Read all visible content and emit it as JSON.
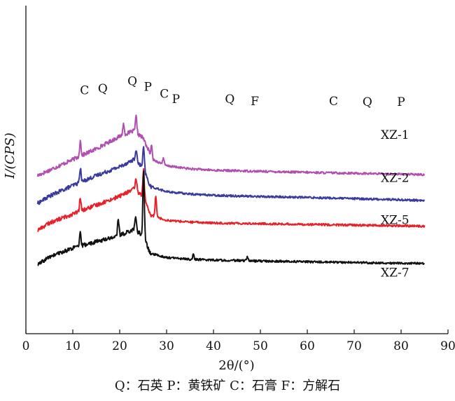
{
  "chart_data": {
    "type": "line",
    "xlabel": "2θ/(°)",
    "ylabel": "I/(CPS)",
    "xlim": [
      0,
      90
    ],
    "x_ticks": [
      0,
      10,
      20,
      30,
      40,
      50,
      60,
      70,
      80,
      90
    ],
    "y_ticks": [],
    "grid": false,
    "legend": "none",
    "series": [
      {
        "name": "XZ-1",
        "color": "#b04fb0",
        "offset": 5.0,
        "background": [
          [
            2.5,
            0.0
          ],
          [
            5,
            0.3
          ],
          [
            10,
            0.9
          ],
          [
            15,
            1.5
          ],
          [
            20,
            2.2
          ],
          [
            23,
            2.5
          ],
          [
            25,
            2.1
          ],
          [
            27,
            0.9
          ],
          [
            30,
            0.55
          ],
          [
            35,
            0.38
          ],
          [
            40,
            0.3
          ],
          [
            50,
            0.24
          ],
          [
            60,
            0.18
          ],
          [
            70,
            0.13
          ],
          [
            80,
            0.08
          ],
          [
            85,
            0.05
          ]
        ],
        "peaks": [
          [
            11.6,
            0.85
          ],
          [
            20.8,
            0.6
          ],
          [
            23.5,
            0.9
          ],
          [
            26.8,
            0.6
          ],
          [
            29.3,
            0.35
          ]
        ]
      },
      {
        "name": "XZ-2",
        "color": "#3a3a9c",
        "offset": 3.45,
        "background": [
          [
            2.5,
            0.0
          ],
          [
            5,
            0.4
          ],
          [
            10,
            1.0
          ],
          [
            15,
            1.55
          ],
          [
            20,
            2.05
          ],
          [
            23,
            2.45
          ],
          [
            25,
            2.0
          ],
          [
            26.5,
            0.95
          ],
          [
            30,
            0.65
          ],
          [
            35,
            0.52
          ],
          [
            40,
            0.45
          ],
          [
            50,
            0.38
          ],
          [
            60,
            0.33
          ],
          [
            70,
            0.26
          ],
          [
            80,
            0.2
          ],
          [
            85,
            0.15
          ]
        ],
        "peaks": [
          [
            11.6,
            0.8
          ],
          [
            23.5,
            0.7
          ],
          [
            25.1,
            1.2
          ]
        ]
      },
      {
        "name": "XZ-5",
        "color": "#e8202a",
        "offset": 1.95,
        "background": [
          [
            2.5,
            0.0
          ],
          [
            5,
            0.4
          ],
          [
            10,
            0.9
          ],
          [
            15,
            1.4
          ],
          [
            20,
            1.9
          ],
          [
            23,
            2.3
          ],
          [
            25,
            1.9
          ],
          [
            26.5,
            0.85
          ],
          [
            30,
            0.55
          ],
          [
            35,
            0.45
          ],
          [
            40,
            0.4
          ],
          [
            50,
            0.36
          ],
          [
            60,
            0.32
          ],
          [
            70,
            0.28
          ],
          [
            80,
            0.24
          ],
          [
            85,
            0.22
          ]
        ],
        "peaks": [
          [
            11.6,
            0.7
          ],
          [
            23.5,
            0.7
          ],
          [
            25.1,
            1.6
          ],
          [
            27.7,
            1.2
          ]
        ]
      },
      {
        "name": "XZ-7",
        "color": "#111111",
        "offset": 0.0,
        "background": [
          [
            2.5,
            0.0
          ],
          [
            5,
            0.45
          ],
          [
            10,
            0.95
          ],
          [
            15,
            1.3
          ],
          [
            20,
            1.65
          ],
          [
            23,
            2.0
          ],
          [
            25,
            1.65
          ],
          [
            26.5,
            0.65
          ],
          [
            30,
            0.42
          ],
          [
            35,
            0.32
          ],
          [
            40,
            0.28
          ],
          [
            50,
            0.22
          ],
          [
            60,
            0.18
          ],
          [
            70,
            0.14
          ],
          [
            80,
            0.1
          ],
          [
            85,
            0.08
          ]
        ],
        "peaks": [
          [
            11.6,
            0.7
          ],
          [
            19.7,
            0.95
          ],
          [
            23.4,
            0.8
          ],
          [
            25.1,
            3.7
          ],
          [
            35.7,
            0.25
          ],
          [
            47.2,
            0.25
          ]
        ]
      }
    ],
    "peak_labels": [
      {
        "text": "C",
        "x": 12.5,
        "y": 9.55
      },
      {
        "text": "Q",
        "x": 16.4,
        "y": 9.65
      },
      {
        "text": "Q",
        "x": 22.7,
        "y": 10.05
      },
      {
        "text": "P",
        "x": 26.0,
        "y": 9.75
      },
      {
        "text": "C",
        "x": 29.5,
        "y": 9.35
      },
      {
        "text": "P",
        "x": 32.0,
        "y": 9.05
      },
      {
        "text": "Q",
        "x": 43.5,
        "y": 9.05
      },
      {
        "text": "F",
        "x": 48.8,
        "y": 8.95
      },
      {
        "text": "C",
        "x": 65.6,
        "y": 8.95
      },
      {
        "text": "Q",
        "x": 72.8,
        "y": 8.9
      },
      {
        "text": "P",
        "x": 80.0,
        "y": 8.9
      }
    ],
    "sample_labels": [
      {
        "text": "XZ-1",
        "x": 78.7,
        "y": 7.05
      },
      {
        "text": "XZ-2",
        "x": 78.7,
        "y": 4.65
      },
      {
        "text": "XZ-5",
        "x": 78.7,
        "y": 2.3
      },
      {
        "text": "XZ-7",
        "x": 78.7,
        "y": -0.65
      }
    ]
  },
  "caption": "Q：石英  P：黄铁矿 C：石膏  F：方解石"
}
